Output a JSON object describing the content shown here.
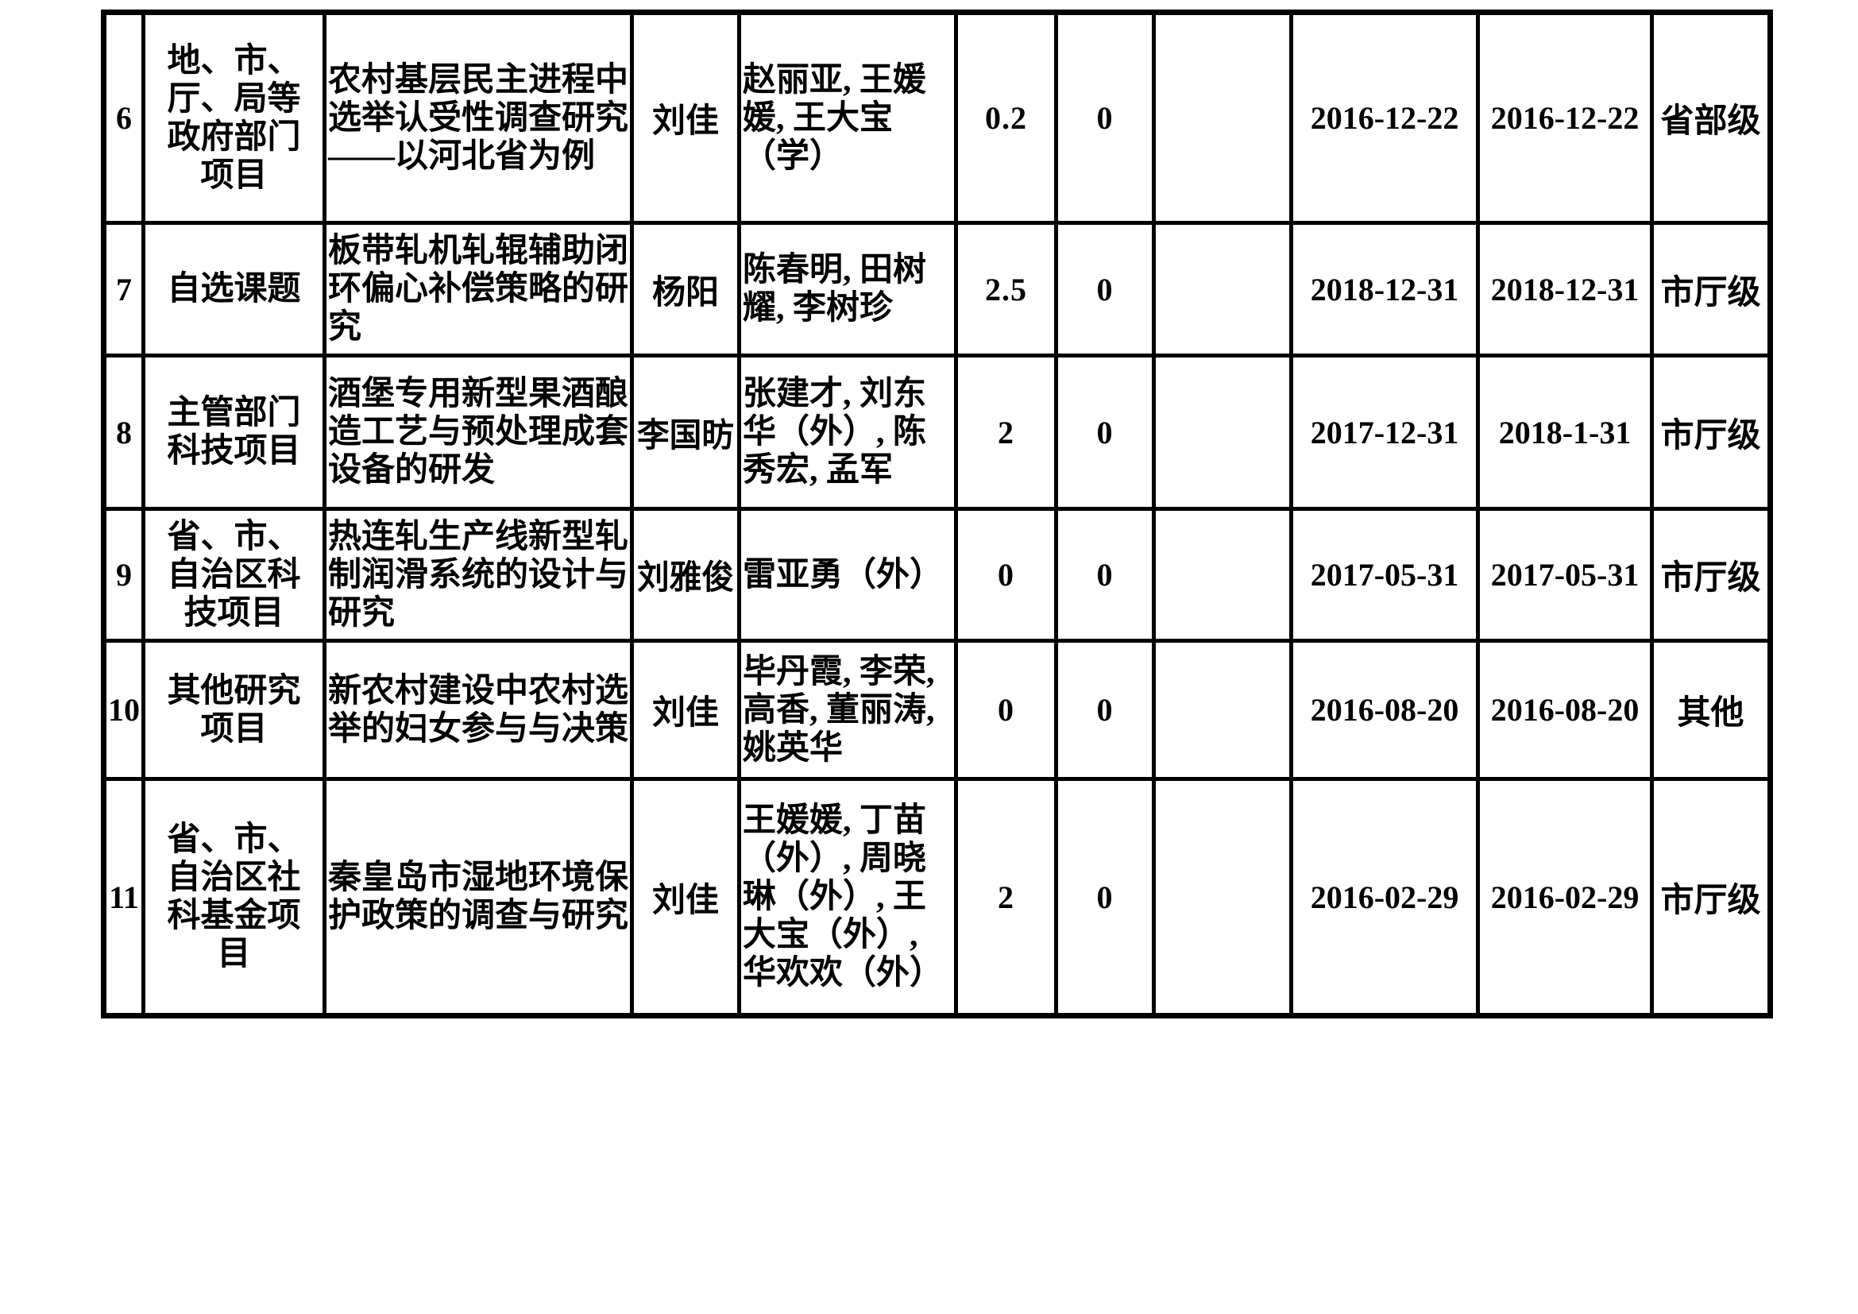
{
  "table": {
    "rows": [
      {
        "num": "6",
        "category": "地、市、厅、局等政府部门项目",
        "title": "农村基层民主进程中选举认受性调查研究——以河北省为例",
        "leader": "刘佳",
        "participants": "赵丽亚, 王媛媛, 王大宝（学）",
        "value1": "0.2",
        "value2": "0",
        "blank": "",
        "date1": "2016-12-22",
        "date2": "2016-12-22",
        "level": "省部级"
      },
      {
        "num": "7",
        "category": "自选课题",
        "title": "板带轧机轧辊辅助闭环偏心补偿策略的研究",
        "leader": "杨阳",
        "participants": "陈春明, 田树耀, 李树珍",
        "value1": "2.5",
        "value2": "0",
        "blank": "",
        "date1": "2018-12-31",
        "date2": "2018-12-31",
        "level": "市厅级"
      },
      {
        "num": "8",
        "category": "主管部门科技项目",
        "title": "酒堡专用新型果酒酿造工艺与预处理成套设备的研发",
        "leader": "李国昉",
        "participants": "张建才, 刘东华（外）, 陈秀宏, 孟军",
        "value1": "2",
        "value2": "0",
        "blank": "",
        "date1": "2017-12-31",
        "date2": "2018-1-31",
        "level": "市厅级"
      },
      {
        "num": "9",
        "category": "省、市、自治区科技项目",
        "title": "热连轧生产线新型轧制润滑系统的设计与研究",
        "leader": "刘雅俊",
        "participants": "雷亚勇（外）",
        "value1": "0",
        "value2": "0",
        "blank": "",
        "date1": "2017-05-31",
        "date2": "2017-05-31",
        "level": "市厅级"
      },
      {
        "num": "10",
        "category": "其他研究项目",
        "title": "新农村建设中农村选举的妇女参与与决策",
        "leader": "刘佳",
        "participants": "毕丹霞, 李荣, 高香, 董丽涛, 姚英华",
        "value1": "0",
        "value2": "0",
        "blank": "",
        "date1": "2016-08-20",
        "date2": "2016-08-20",
        "level": "其他"
      },
      {
        "num": "11",
        "category": "省、市、自治区社科基金项目",
        "title": "秦皇岛市湿地环境保护政策的调查与研究",
        "leader": "刘佳",
        "participants": "王媛媛, 丁苗（外）, 周晓琳（外）, 王大宝（外）, 华欢欢（外）",
        "value1": "2",
        "value2": "0",
        "blank": "",
        "date1": "2016-02-29",
        "date2": "2016-02-29",
        "level": "市厅级"
      }
    ]
  }
}
